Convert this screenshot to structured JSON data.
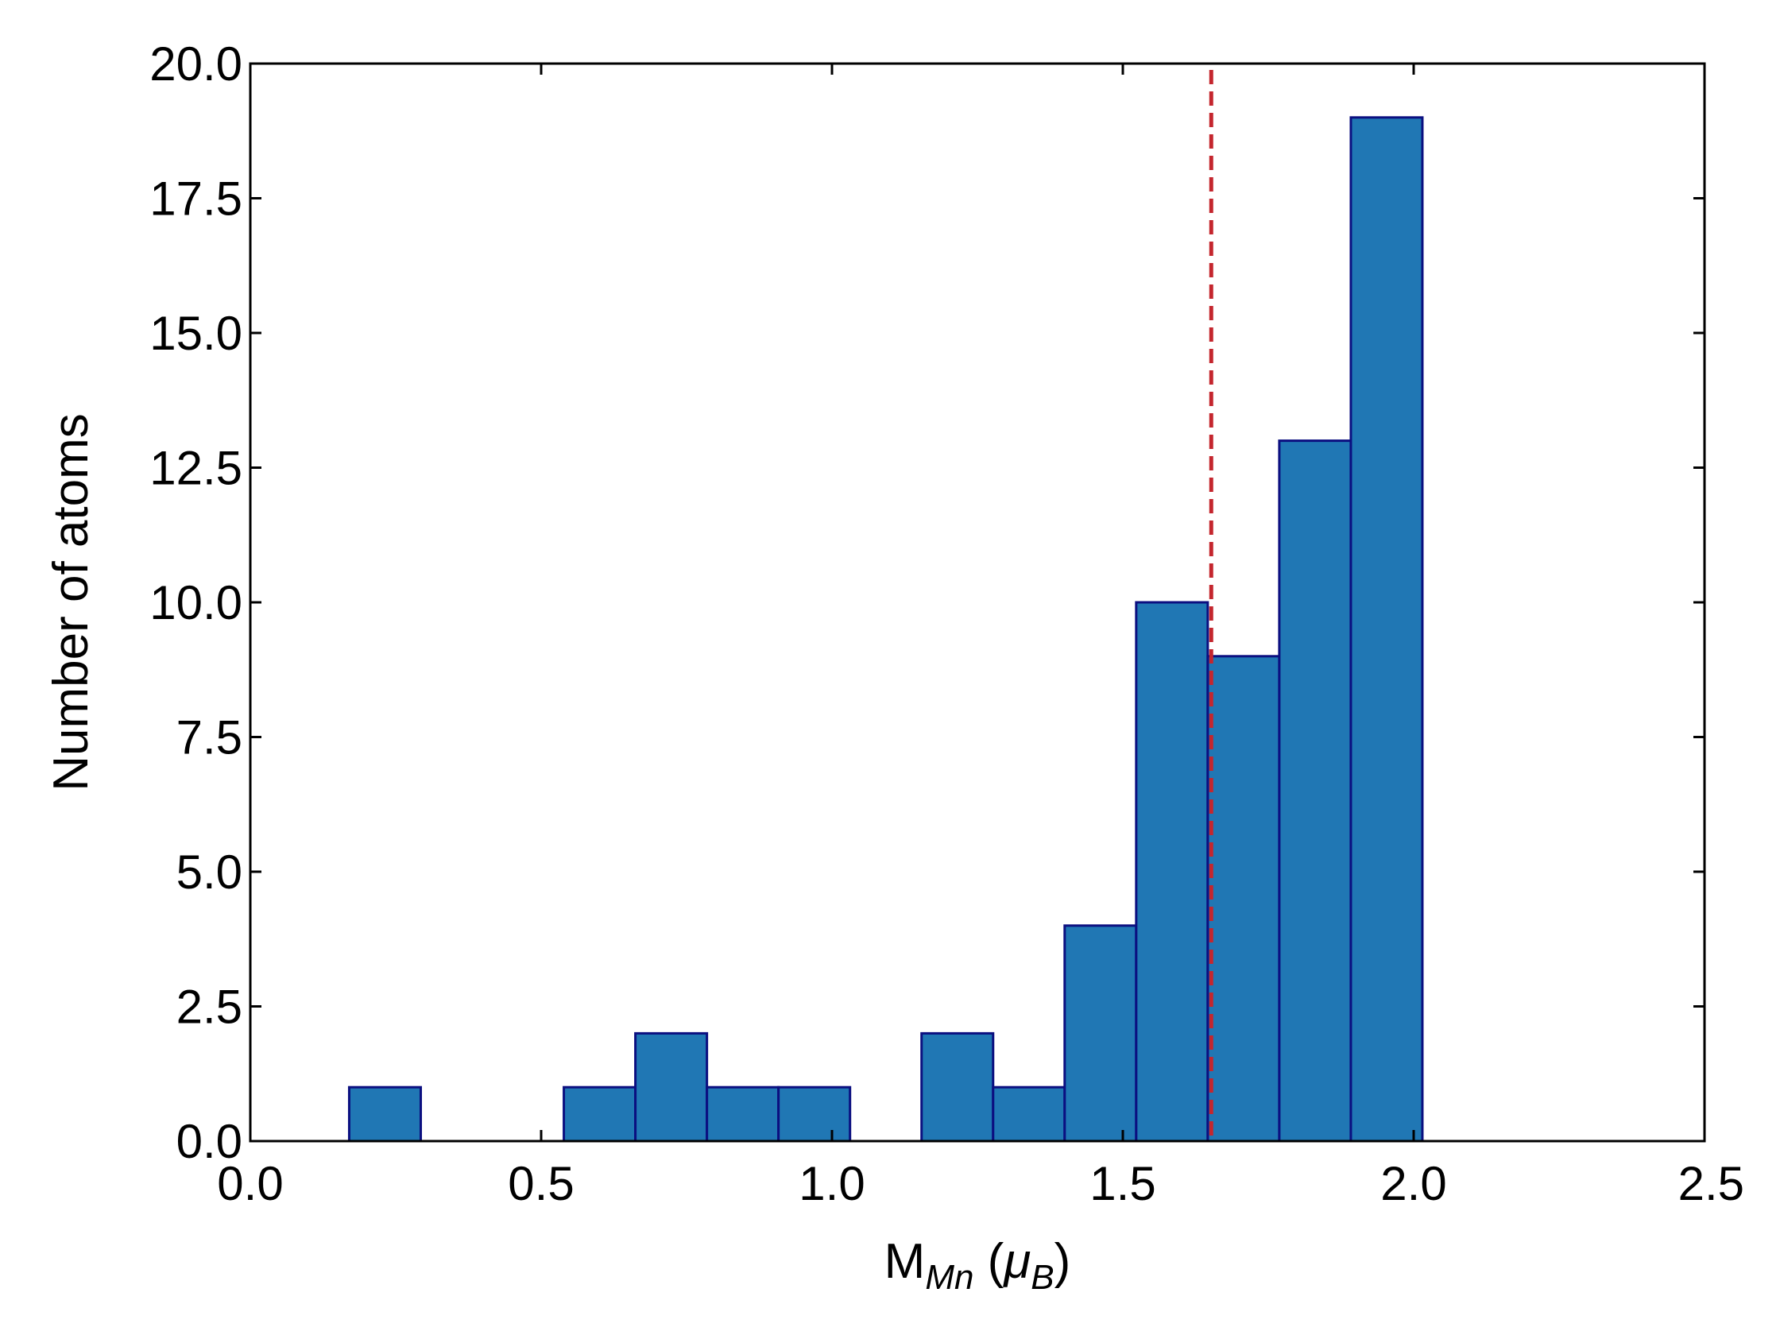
{
  "chart_data": {
    "type": "bar",
    "subtype": "histogram",
    "xlabel": {
      "main": "M",
      "sub": "Mn",
      "paren_open": " (",
      "mu": "μ",
      "mu_sub": "B",
      "paren_close": ")"
    },
    "ylabel": "Number of atoms",
    "xlim": [
      0.0,
      2.5
    ],
    "ylim": [
      0.0,
      20.0
    ],
    "xticks": [
      0.0,
      0.5,
      1.0,
      1.5,
      2.0,
      2.5
    ],
    "xtick_labels": [
      "0.0",
      "0.5",
      "1.0",
      "1.5",
      "2.0",
      "2.5"
    ],
    "yticks": [
      0.0,
      2.5,
      5.0,
      7.5,
      10.0,
      12.5,
      15.0,
      17.5,
      20.0
    ],
    "ytick_labels": [
      "0.0",
      "2.5",
      "5.0",
      "7.5",
      "10.0",
      "12.5",
      "15.0",
      "17.5",
      "20.0"
    ],
    "bins": [
      {
        "start": 0.17,
        "end": 0.293,
        "count": 1
      },
      {
        "start": 0.293,
        "end": 0.416,
        "count": 0
      },
      {
        "start": 0.416,
        "end": 0.539,
        "count": 0
      },
      {
        "start": 0.539,
        "end": 0.662,
        "count": 1
      },
      {
        "start": 0.662,
        "end": 0.785,
        "count": 2
      },
      {
        "start": 0.785,
        "end": 0.908,
        "count": 1
      },
      {
        "start": 0.908,
        "end": 1.031,
        "count": 1
      },
      {
        "start": 1.031,
        "end": 1.154,
        "count": 0
      },
      {
        "start": 1.154,
        "end": 1.277,
        "count": 2
      },
      {
        "start": 1.277,
        "end": 1.4,
        "count": 1
      },
      {
        "start": 1.4,
        "end": 1.523,
        "count": 4
      },
      {
        "start": 1.523,
        "end": 1.646,
        "count": 10
      },
      {
        "start": 1.646,
        "end": 1.769,
        "count": 9
      },
      {
        "start": 1.769,
        "end": 1.892,
        "count": 13
      },
      {
        "start": 1.892,
        "end": 2.015,
        "count": 19
      }
    ],
    "reference_line": {
      "x": 1.652,
      "style": "dashed",
      "color": "#c4262e"
    },
    "bar_fill": "#2077b4",
    "bar_edge": "#0b0f80",
    "grid": false,
    "legend": "none"
  }
}
